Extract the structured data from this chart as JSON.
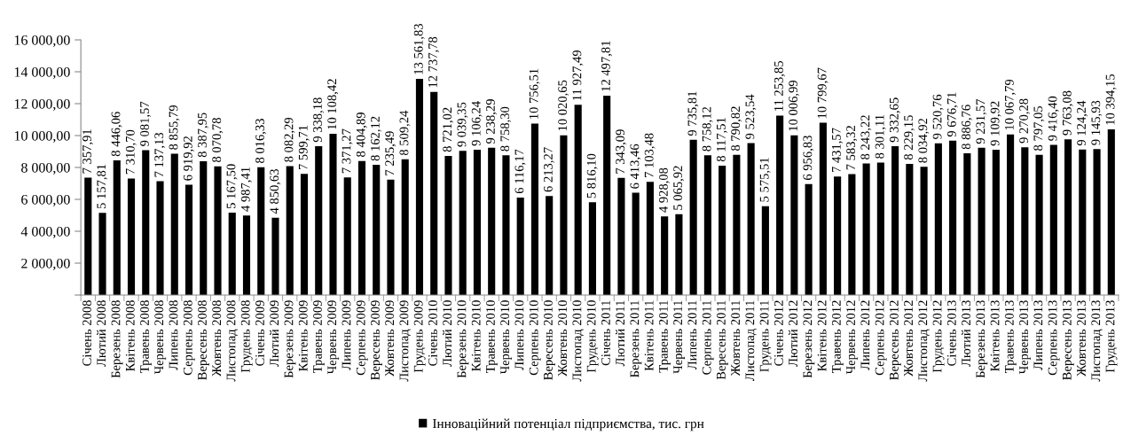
{
  "chart_data": {
    "type": "bar",
    "categories": [
      "Січень 2008",
      "Лютий 2008",
      "Березень 2008",
      "Квітень 2008",
      "Травень 2008",
      "Червень 2008",
      "Липень 2008",
      "Серпень 2008",
      "Вересень 2008",
      "Жовтень 2008",
      "Листопад 2008",
      "Грудень 2008",
      "Січень 2009",
      "Лютий 2009",
      "Березень 2009",
      "Квітень 2009",
      "Травень 2009",
      "Червень 2009",
      "Липень 2009",
      "Серпень 2009",
      "Вересень 2009",
      "Жовтень 2009",
      "Листопад 2009",
      "Грудень 2009",
      "Січень 2010",
      "Лютий 2010",
      "Березень 2010",
      "Квітень 2010",
      "Травень 2010",
      "Червень 2010",
      "Липень 2010",
      "Серпень 2010",
      "Вересень 2010",
      "Жовтень 2010",
      "Листопад 2010",
      "Грудень 2010",
      "Січень 2011",
      "Лютий 2011",
      "Березень 2011",
      "Квітень 2011",
      "Травень 2011",
      "Червень 2011",
      "Липень 2011",
      "Серпень 2011",
      "Вересень 2011",
      "Жовтень 2011",
      "Листопад 2011",
      "Грудень 2011",
      "Січень 2012",
      "Лютий 2012",
      "Березень 2012",
      "Квітень 2012",
      "Травень 2012",
      "Червень 2012",
      "Липень 2012",
      "Серпень 2012",
      "Вересень 2012",
      "Жовтень 2012",
      "Листопад 2012",
      "Грудень 2012",
      "Січень 2013",
      "Лютий 2013",
      "Березень 2013",
      "Квітень 2013",
      "Травень 2013",
      "Червень 2013",
      "Липень 2013",
      "Серпень 2013",
      "Вересень 2013",
      "Жовтень 2013",
      "Листопад 2013",
      "Грудень 2013"
    ],
    "series": [
      {
        "name": "Інноваційний потенціал підприємства, тис. грн",
        "color": "#000000",
        "values": [
          7357.91,
          5157.81,
          8446.06,
          7310.7,
          9081.57,
          7137.13,
          8855.79,
          6919.92,
          8387.95,
          8070.78,
          5167.5,
          4987.41,
          8016.33,
          4850.63,
          8082.29,
          7599.71,
          9338.18,
          10108.42,
          7371.27,
          8404.89,
          8162.12,
          7235.49,
          8509.24,
          13561.83,
          12737.78,
          8721.02,
          9039.35,
          9106.24,
          9238.29,
          8758.3,
          6116.17,
          10756.51,
          6213.27,
          10020.65,
          11927.49,
          5816.1,
          12497.81,
          7343.09,
          6413.46,
          7103.48,
          4928.08,
          5065.92,
          9735.81,
          8758.12,
          8117.51,
          8790.82,
          9523.54,
          5575.51,
          11253.85,
          10006.99,
          6956.83,
          10799.67,
          7431.57,
          7583.32,
          8243.22,
          8301.11,
          9332.65,
          8229.15,
          8034.92,
          9520.76,
          9676.71,
          8886.76,
          9231.57,
          9109.92,
          10067.79,
          9270.28,
          8797.05,
          9416.4,
          9763.08,
          9124.24,
          9145.93,
          10394.15
        ],
        "value_labels": [
          "7 357,91",
          "5 157,81",
          "8 446,06",
          "7 310,70",
          "9 081,57",
          "7 137,13",
          "8 855,79",
          "6 919,92",
          "8 387,95",
          "8 070,78",
          "5 167,50",
          "4 987,41",
          "8 016,33",
          "4 850,63",
          "8 082,29",
          "7 599,71",
          "9 338,18",
          "10 108,42",
          "7 371,27",
          "8 404,89",
          "8 162,12",
          "7 235,49",
          "8 509,24",
          "13 561,83",
          "12 737,78",
          "8 721,02",
          "9 039,35",
          "9 106,24",
          "9 238,29",
          "8 758,30",
          "6 116,17",
          "10 756,51",
          "6 213,27",
          "10 020,65",
          "11 927,49",
          "5 816,10",
          "12 497,81",
          "7 343,09",
          "6 413,46",
          "7 103,48",
          "4 928,08",
          "5 065,92",
          "9 735,81",
          "8 758,12",
          "8 117,51",
          "8 790,82",
          "9 523,54",
          "5 575,51",
          "11 253,85",
          "10 006,99",
          "6 956,83",
          "10 799,67",
          "7 431,57",
          "7 583,32",
          "8 243,22",
          "8 301,11",
          "9 332,65",
          "8 229,15",
          "8 034,92",
          "9 520,76",
          "9 676,71",
          "8 886,76",
          "9 231,57",
          "9 109,92",
          "10 067,79",
          "9 270,28",
          "8 797,05",
          "9 416,40",
          "9 763,08",
          "9 124,24",
          "9 145,93",
          "10 394,15"
        ]
      }
    ],
    "ylim": [
      0,
      16000
    ],
    "yticks": [
      {
        "value": 0,
        "label": null
      },
      {
        "value": 2000,
        "label": "2 000,00"
      },
      {
        "value": 4000,
        "label": "4 000,00"
      },
      {
        "value": 6000,
        "label": "6 000,00"
      },
      {
        "value": 8000,
        "label": "8 000,00"
      },
      {
        "value": 10000,
        "label": "10 000,00"
      },
      {
        "value": 12000,
        "label": "12 000,00"
      },
      {
        "value": 14000,
        "label": "14 000,00"
      },
      {
        "value": 16000,
        "label": "16 000,00"
      }
    ],
    "legend": "bottom"
  }
}
